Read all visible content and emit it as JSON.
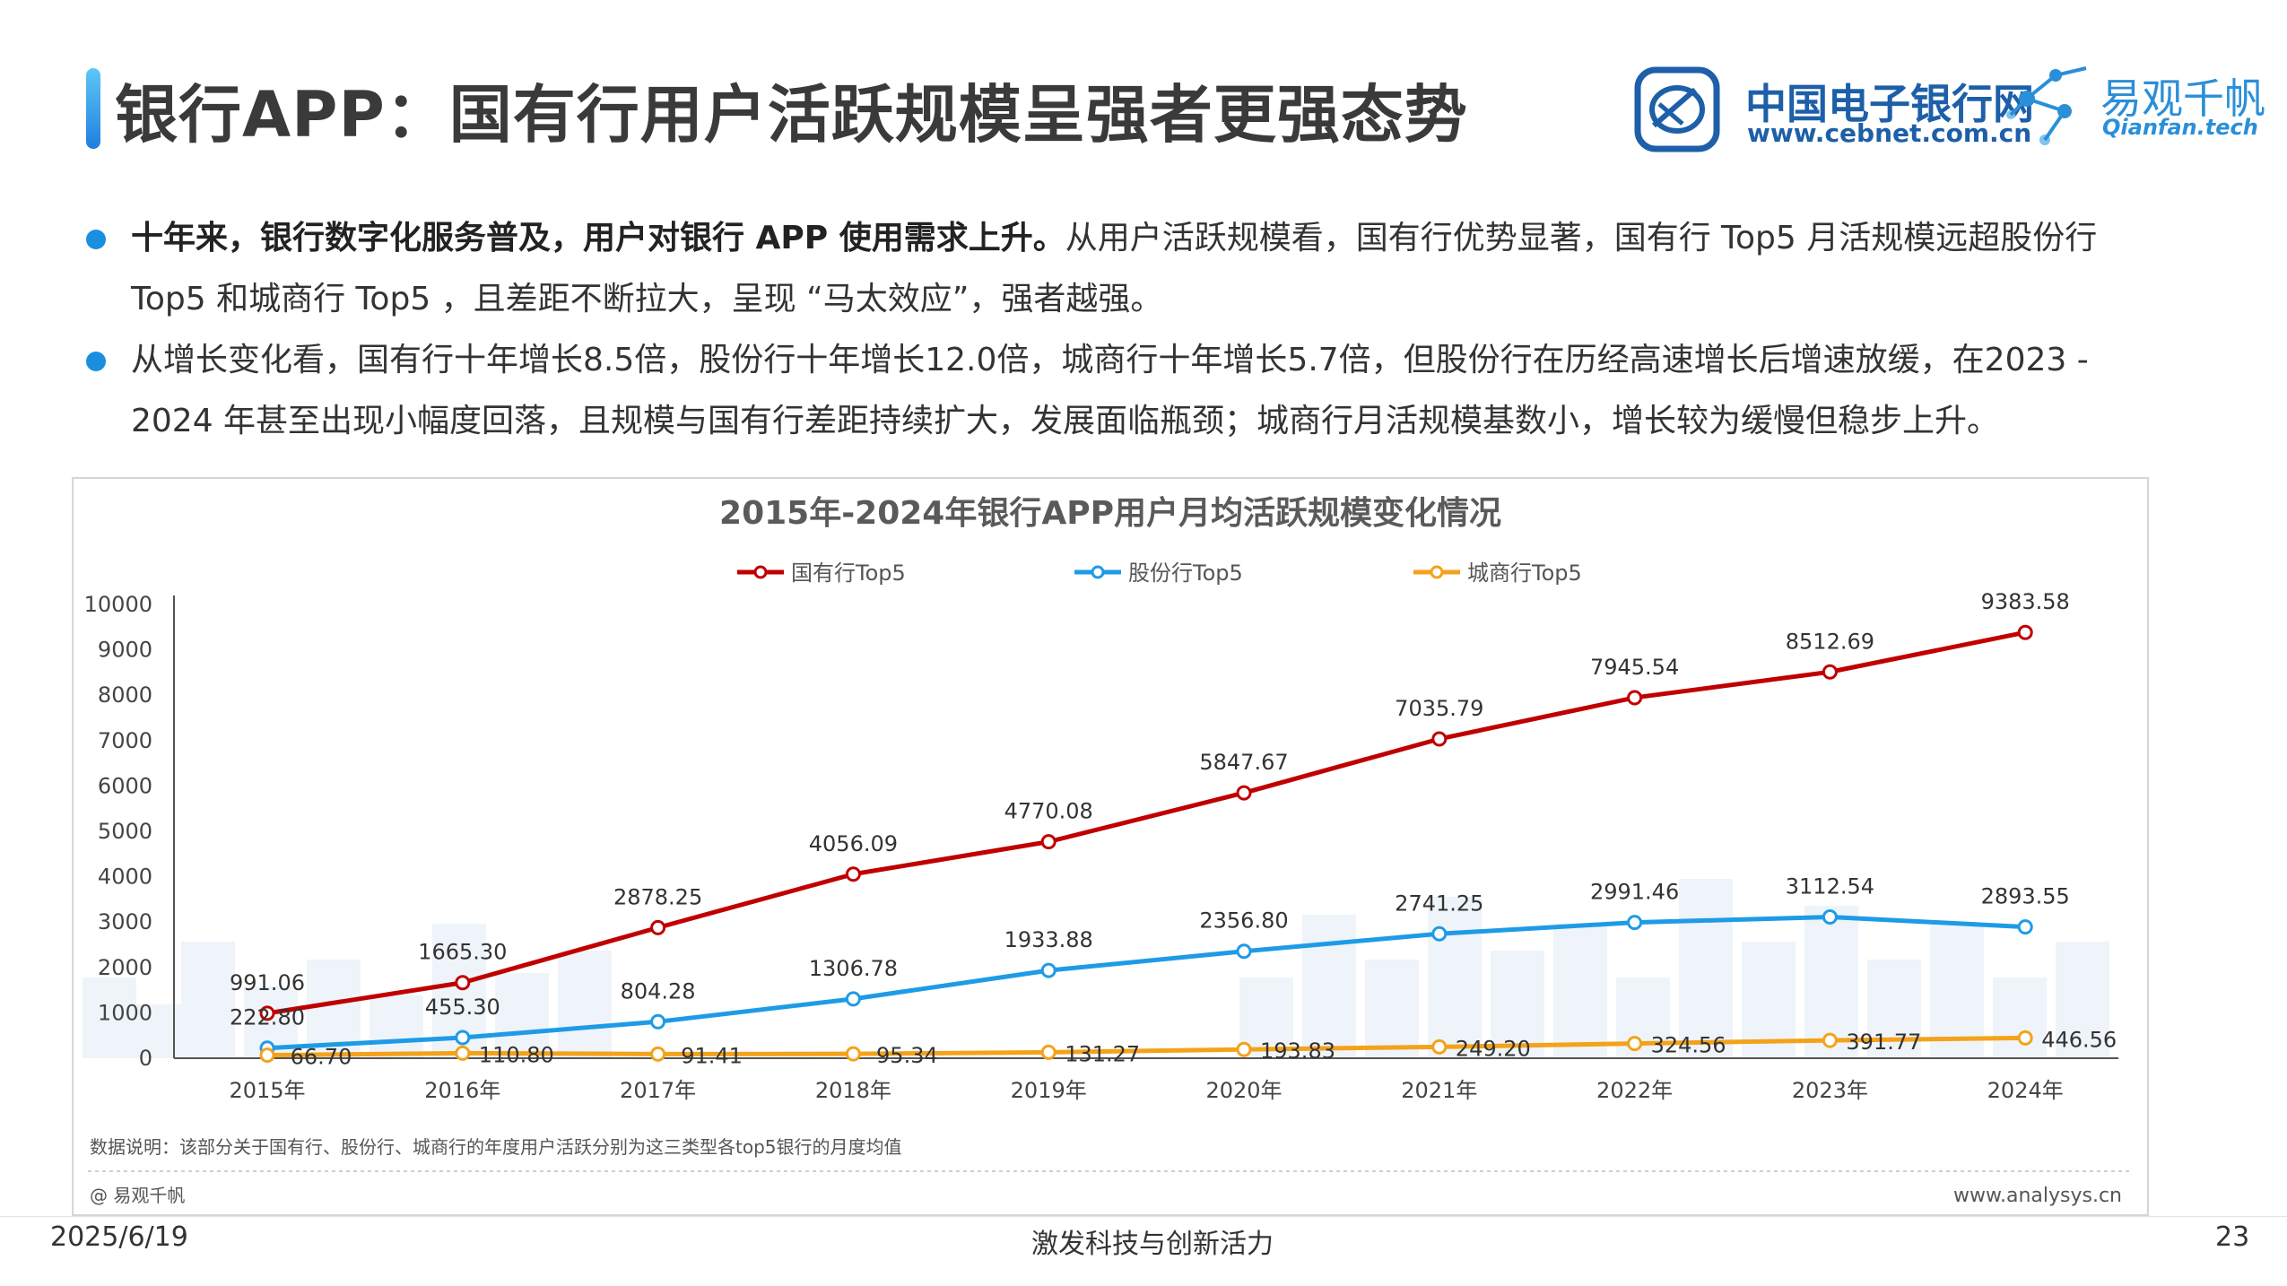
{
  "header": {
    "title": "银行APP：国有行用户活跃规模呈强者更强态势",
    "logo_cebnet": {
      "name": "中国电子银行网",
      "url": "www.cebnet.com.cn"
    },
    "logo_qianfan": {
      "name": "易观千帆",
      "url": "Qianfan.tech"
    }
  },
  "bullets": [
    {
      "bold": "十年来，银行数字化服务普及，用户对银行 APP 使用需求上升。",
      "text": "从用户活跃规模看，国有行优势显著，国有行 Top5 月活规模远超股份行 Top5 和城商行 Top5 ，且差距不断拉大，呈现 “马太效应”，强者越强。"
    },
    {
      "bold": "",
      "text": "从增长变化看，国有行十年增长8.5倍，股份行十年增长12.0倍，城商行十年增长5.7倍，但股份行在历经高速增长后增速放缓，在2023 - 2024 年甚至出现小幅度回落，且规模与国有行差距持续扩大，发展面临瓶颈；城商行月活规模基数小，增长较为缓慢但稳步上升。"
    }
  ],
  "chart_data": {
    "type": "line",
    "title": "2015年-2024年银行APP用户月均活跃规模变化情况",
    "categories": [
      "2015年",
      "2016年",
      "2017年",
      "2018年",
      "2019年",
      "2020年",
      "2021年",
      "2022年",
      "2023年",
      "2024年"
    ],
    "ylim": [
      0,
      10000
    ],
    "yticks": [
      "0",
      "1000",
      "2000",
      "3000",
      "4000",
      "5000",
      "6000",
      "7000",
      "8000",
      "9000",
      "10000"
    ],
    "grid": false,
    "legend_position": "top",
    "series": [
      {
        "name": "国有行Top5",
        "color": "#c00000",
        "values": [
          991.06,
          1665.3,
          2878.25,
          4056.09,
          4770.08,
          5847.67,
          7035.79,
          7945.54,
          8512.69,
          9383.58
        ],
        "labels": [
          "991.06",
          "1665.30",
          "2878.25",
          "4056.09",
          "4770.08",
          "5847.67",
          "7035.79",
          "7945.54",
          "8512.69",
          "9383.58"
        ]
      },
      {
        "name": "股份行Top5",
        "color": "#1e9be6",
        "values": [
          222.8,
          455.3,
          804.28,
          1306.78,
          1933.88,
          2356.8,
          2741.25,
          2991.46,
          3112.54,
          2893.55
        ],
        "labels": [
          "222.80",
          "455.30",
          "804.28",
          "1306.78",
          "1933.88",
          "2356.80",
          "2741.25",
          "2991.46",
          "3112.54",
          "2893.55"
        ]
      },
      {
        "name": "城商行Top5",
        "color": "#f4a21a",
        "values": [
          66.7,
          110.8,
          91.41,
          95.34,
          131.27,
          193.83,
          249.2,
          324.56,
          391.77,
          446.56
        ],
        "labels": [
          "66.70",
          "110.80",
          "91.41",
          "95.34",
          "131.27",
          "193.83",
          "249.20",
          "324.56",
          "391.77",
          "446.56"
        ]
      }
    ],
    "note": "数据说明：该部分关于国有行、股份行、城商行的年度用户活跃分别为这三类型各top5银行的月度均值",
    "source": "@ 易观千帆",
    "website": "www.analysys.cn"
  },
  "footer": {
    "date": "2025/6/19",
    "slogan": "激发科技与创新活力",
    "page": "23"
  }
}
